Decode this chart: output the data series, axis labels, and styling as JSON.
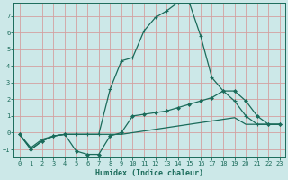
{
  "xlabel": "Humidex (Indice chaleur)",
  "background_color": "#cce8e8",
  "grid_color": "#d4a0a0",
  "line_color": "#1a6b5a",
  "xlim": [
    -0.5,
    23.5
  ],
  "ylim": [
    -1.5,
    7.8
  ],
  "xticks": [
    0,
    1,
    2,
    3,
    4,
    5,
    6,
    7,
    8,
    9,
    10,
    11,
    12,
    13,
    14,
    15,
    16,
    17,
    18,
    19,
    20,
    21,
    22,
    23
  ],
  "yticks": [
    -1,
    0,
    1,
    2,
    3,
    4,
    5,
    6,
    7
  ],
  "curve1_x": [
    0,
    1,
    2,
    3,
    4,
    5,
    6,
    7,
    8,
    9,
    10,
    11,
    12,
    13,
    14,
    15,
    16,
    17,
    18,
    19,
    20,
    21,
    22,
    23
  ],
  "curve1_y": [
    -0.1,
    -1.0,
    -0.5,
    -0.2,
    -0.1,
    -0.1,
    -0.1,
    -0.1,
    2.6,
    4.3,
    4.5,
    6.1,
    6.9,
    7.3,
    7.8,
    7.8,
    5.8,
    3.3,
    2.5,
    1.9,
    1.0,
    0.5,
    0.5,
    0.5
  ],
  "curve2_x": [
    0,
    1,
    2,
    3,
    4,
    5,
    6,
    7,
    8,
    9,
    10,
    11,
    12,
    13,
    14,
    15,
    16,
    17,
    18,
    19,
    20,
    21,
    22,
    23
  ],
  "curve2_y": [
    -0.1,
    -1.0,
    -0.5,
    -0.2,
    -0.1,
    -1.1,
    -1.3,
    -1.3,
    -0.2,
    0.0,
    1.0,
    1.1,
    1.2,
    1.3,
    1.5,
    1.7,
    1.9,
    2.1,
    2.5,
    2.5,
    1.9,
    1.0,
    0.5,
    0.5
  ],
  "curve3_x": [
    0,
    1,
    2,
    3,
    4,
    5,
    6,
    7,
    8,
    9,
    10,
    11,
    12,
    13,
    14,
    15,
    16,
    17,
    18,
    19,
    20,
    21,
    22,
    23
  ],
  "curve3_y": [
    -0.1,
    -0.9,
    -0.4,
    -0.2,
    -0.1,
    -0.1,
    -0.1,
    -0.1,
    -0.1,
    -0.1,
    0.0,
    0.1,
    0.2,
    0.3,
    0.4,
    0.5,
    0.6,
    0.7,
    0.8,
    0.9,
    0.5,
    0.5,
    0.5,
    0.5
  ]
}
